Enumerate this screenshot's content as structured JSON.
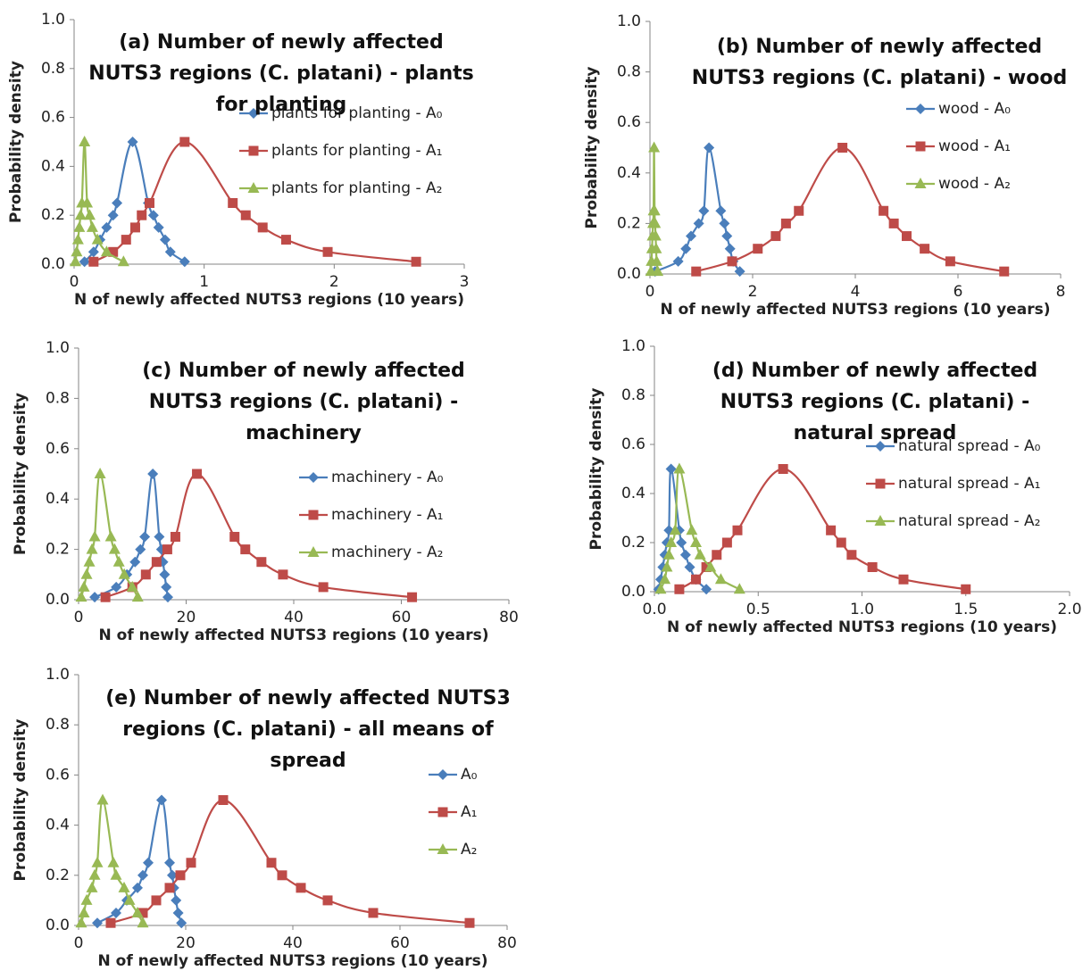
{
  "chart_data": [
    {
      "type": "line",
      "title": "(a) Number of newly affected NUTS3 regions (C. platani) - plants for planting",
      "x_label": "N of newly affected NUTS3 regions (10 years)",
      "y_label": "Probability density",
      "xlim": [
        0,
        3
      ],
      "xticks": [
        0,
        1,
        2,
        3
      ],
      "ylim": [
        0,
        1
      ],
      "yticks": [
        {
          "value": 0,
          "label": "0.0"
        },
        {
          "value": 0.2,
          "label": "0.2"
        },
        {
          "value": 0.4,
          "label": "0.4"
        },
        {
          "value": 0.6,
          "label": "0.6"
        },
        {
          "value": 0.8,
          "label": "0.8"
        },
        {
          "value": 1,
          "label": "1.0"
        }
      ],
      "legend": "right",
      "series": [
        {
          "name": "plants for planting - A₀",
          "color": "#4a7ebb",
          "marker": "diamond",
          "x": [
            0.08,
            0.15,
            0.2,
            0.25,
            0.3,
            0.33,
            0.45,
            0.57,
            0.61,
            0.65,
            0.7,
            0.74,
            0.85
          ],
          "values": [
            0.01,
            0.05,
            0.1,
            0.15,
            0.2,
            0.25,
            0.5,
            0.25,
            0.2,
            0.15,
            0.1,
            0.05,
            0.01
          ]
        },
        {
          "name": "plants for planting - A₁",
          "color": "#be4b48",
          "marker": "square",
          "x": [
            0.15,
            0.3,
            0.4,
            0.47,
            0.52,
            0.58,
            0.85,
            1.22,
            1.32,
            1.45,
            1.63,
            1.95,
            2.63
          ],
          "values": [
            0.01,
            0.05,
            0.1,
            0.15,
            0.2,
            0.25,
            0.5,
            0.25,
            0.2,
            0.15,
            0.1,
            0.05,
            0.01
          ]
        },
        {
          "name": "plants for planting - A₂",
          "color": "#98b954",
          "marker": "triangle",
          "x": [
            0.01,
            0.02,
            0.03,
            0.04,
            0.05,
            0.06,
            0.08,
            0.1,
            0.12,
            0.14,
            0.18,
            0.25,
            0.38
          ],
          "values": [
            0.01,
            0.05,
            0.1,
            0.15,
            0.2,
            0.25,
            0.5,
            0.25,
            0.2,
            0.15,
            0.1,
            0.05,
            0.01
          ]
        }
      ]
    },
    {
      "type": "line",
      "title": "(b) Number of newly affected NUTS3 regions (C. platani) - wood",
      "x_label": "N of newly affected NUTS3 regions (10 years)",
      "y_label": "Probability density",
      "xlim": [
        0,
        8
      ],
      "xticks": [
        0,
        2,
        4,
        6,
        8
      ],
      "ylim": [
        0,
        1
      ],
      "yticks": [
        {
          "value": 0,
          "label": "0.0"
        },
        {
          "value": 0.2,
          "label": "0.2"
        },
        {
          "value": 0.4,
          "label": "0.4"
        },
        {
          "value": 0.6,
          "label": "0.6"
        },
        {
          "value": 0.8,
          "label": "0.8"
        },
        {
          "value": 1,
          "label": "1.0"
        }
      ],
      "legend": "right",
      "series": [
        {
          "name": "wood - A₀",
          "color": "#4a7ebb",
          "marker": "diamond",
          "x": [
            0.1,
            0.55,
            0.7,
            0.8,
            0.95,
            1.05,
            1.15,
            1.38,
            1.45,
            1.5,
            1.56,
            1.62,
            1.75
          ],
          "values": [
            0.01,
            0.05,
            0.1,
            0.15,
            0.2,
            0.25,
            0.5,
            0.25,
            0.2,
            0.15,
            0.1,
            0.05,
            0.01
          ]
        },
        {
          "name": "wood - A₁",
          "color": "#be4b48",
          "marker": "square",
          "x": [
            0.9,
            1.6,
            2.1,
            2.45,
            2.65,
            2.9,
            3.75,
            4.55,
            4.75,
            5.0,
            5.35,
            5.85,
            6.9
          ],
          "values": [
            0.01,
            0.05,
            0.1,
            0.15,
            0.2,
            0.25,
            0.5,
            0.25,
            0.2,
            0.15,
            0.1,
            0.05,
            0.01
          ]
        },
        {
          "name": "wood - A₂",
          "color": "#98b954",
          "marker": "triangle",
          "x": [
            0.02,
            0.03,
            0.04,
            0.05,
            0.06,
            0.07,
            0.08,
            0.09,
            0.1,
            0.11,
            0.12,
            0.13,
            0.15
          ],
          "values": [
            0.01,
            0.05,
            0.1,
            0.15,
            0.2,
            0.25,
            0.5,
            0.25,
            0.2,
            0.15,
            0.1,
            0.05,
            0.01
          ]
        }
      ]
    },
    {
      "type": "line",
      "title": "(c) Number of newly affected NUTS3 regions (C. platani) - machinery",
      "x_label": "N of newly affected NUTS3 regions (10 years)",
      "y_label": "Probability density",
      "xlim": [
        0,
        80
      ],
      "xticks": [
        0,
        20,
        40,
        60,
        80
      ],
      "ylim": [
        0,
        1
      ],
      "yticks": [
        {
          "value": 0,
          "label": "0.0"
        },
        {
          "value": 0.2,
          "label": "0.2"
        },
        {
          "value": 0.4,
          "label": "0.4"
        },
        {
          "value": 0.6,
          "label": "0.6"
        },
        {
          "value": 0.8,
          "label": "0.8"
        },
        {
          "value": 1,
          "label": "1.0"
        }
      ],
      "legend": "right",
      "series": [
        {
          "name": "machinery - A₀",
          "color": "#4a7ebb",
          "marker": "diamond",
          "x": [
            3,
            7,
            9,
            10.5,
            11.5,
            12.3,
            13.8,
            15,
            15.4,
            15.7,
            16,
            16.3,
            16.6
          ],
          "values": [
            0.01,
            0.05,
            0.1,
            0.15,
            0.2,
            0.25,
            0.5,
            0.25,
            0.2,
            0.15,
            0.1,
            0.05,
            0.01
          ]
        },
        {
          "name": "machinery - A₁",
          "color": "#be4b48",
          "marker": "square",
          "x": [
            5,
            10,
            12.5,
            14.5,
            16.5,
            18,
            22,
            29,
            31,
            34,
            38,
            45.5,
            62
          ],
          "values": [
            0.01,
            0.05,
            0.1,
            0.15,
            0.2,
            0.25,
            0.5,
            0.25,
            0.2,
            0.15,
            0.1,
            0.05,
            0.01
          ]
        },
        {
          "name": "machinery - A₂",
          "color": "#98b954",
          "marker": "triangle",
          "x": [
            0.5,
            1,
            1.5,
            2,
            2.5,
            3,
            4,
            6,
            6.7,
            7.5,
            8.5,
            10,
            11
          ],
          "values": [
            0.01,
            0.05,
            0.1,
            0.15,
            0.2,
            0.25,
            0.5,
            0.25,
            0.2,
            0.15,
            0.1,
            0.05,
            0.01
          ]
        }
      ]
    },
    {
      "type": "line",
      "title": "(d) Number of newly affected NUTS3 regions (C. platani) - natural spread",
      "x_label": "N of newly affected NUTS3 regions (10 years)",
      "y_label": "Probability density",
      "xlim": [
        0,
        2
      ],
      "xticks": [
        {
          "value": 0,
          "label": "0.0"
        },
        {
          "value": 0.5,
          "label": "0.5"
        },
        {
          "value": 1,
          "label": "1.0"
        },
        {
          "value": 1.5,
          "label": "1.5"
        },
        {
          "value": 2,
          "label": "2.0"
        }
      ],
      "ylim": [
        0,
        1
      ],
      "yticks": [
        {
          "value": 0,
          "label": "0.0"
        },
        {
          "value": 0.2,
          "label": "0.2"
        },
        {
          "value": 0.4,
          "label": "0.4"
        },
        {
          "value": 0.6,
          "label": "0.6"
        },
        {
          "value": 0.8,
          "label": "0.8"
        },
        {
          "value": 1,
          "label": "1.0"
        }
      ],
      "legend": "right",
      "series": [
        {
          "name": "natural spread - A₀",
          "color": "#4a7ebb",
          "marker": "diamond",
          "x": [
            0.02,
            0.03,
            0.04,
            0.05,
            0.06,
            0.07,
            0.08,
            0.12,
            0.13,
            0.15,
            0.17,
            0.2,
            0.25
          ],
          "values": [
            0.01,
            0.05,
            0.1,
            0.15,
            0.2,
            0.25,
            0.5,
            0.25,
            0.2,
            0.15,
            0.1,
            0.05,
            0.01
          ]
        },
        {
          "name": "natural spread - A₁",
          "color": "#be4b48",
          "marker": "square",
          "x": [
            0.12,
            0.2,
            0.25,
            0.3,
            0.35,
            0.4,
            0.62,
            0.85,
            0.9,
            0.95,
            1.05,
            1.2,
            1.5
          ],
          "values": [
            0.01,
            0.05,
            0.1,
            0.15,
            0.2,
            0.25,
            0.5,
            0.25,
            0.2,
            0.15,
            0.1,
            0.05,
            0.01
          ]
        },
        {
          "name": "natural spread - A₂",
          "color": "#98b954",
          "marker": "triangle",
          "x": [
            0.03,
            0.05,
            0.06,
            0.07,
            0.08,
            0.1,
            0.12,
            0.18,
            0.2,
            0.22,
            0.27,
            0.32,
            0.41
          ],
          "values": [
            0.01,
            0.05,
            0.1,
            0.15,
            0.2,
            0.25,
            0.5,
            0.25,
            0.2,
            0.15,
            0.1,
            0.05,
            0.01
          ]
        }
      ]
    },
    {
      "type": "line",
      "title": "(e) Number of newly affected NUTS3 regions (C. platani) - all means of spread",
      "x_label": "N of newly affected NUTS3 regions (10 years)",
      "y_label": "Probability density",
      "xlim": [
        0,
        80
      ],
      "xticks": [
        0,
        20,
        40,
        60,
        80
      ],
      "ylim": [
        0,
        1
      ],
      "yticks": [
        {
          "value": 0,
          "label": "0.0"
        },
        {
          "value": 0.2,
          "label": "0.2"
        },
        {
          "value": 0.4,
          "label": "0.4"
        },
        {
          "value": 0.6,
          "label": "0.6"
        },
        {
          "value": 0.8,
          "label": "0.8"
        },
        {
          "value": 1,
          "label": "1.0"
        }
      ],
      "legend": "right",
      "series": [
        {
          "name": "A₀",
          "color": "#4a7ebb",
          "marker": "diamond",
          "x": [
            3.5,
            7,
            9,
            11,
            12,
            13,
            15.5,
            17,
            17.5,
            17.8,
            18.2,
            18.6,
            19.2
          ],
          "values": [
            0.01,
            0.05,
            0.1,
            0.15,
            0.2,
            0.25,
            0.5,
            0.25,
            0.2,
            0.15,
            0.1,
            0.05,
            0.01
          ]
        },
        {
          "name": "A₁",
          "color": "#be4b48",
          "marker": "square",
          "x": [
            6,
            12,
            14.5,
            17,
            19,
            21,
            27,
            36,
            38,
            41.5,
            46.5,
            55,
            73
          ],
          "values": [
            0.01,
            0.05,
            0.1,
            0.15,
            0.2,
            0.25,
            0.5,
            0.25,
            0.2,
            0.15,
            0.1,
            0.05,
            0.01
          ]
        },
        {
          "name": "A₂",
          "color": "#98b954",
          "marker": "triangle",
          "x": [
            0.5,
            1,
            1.5,
            2.5,
            3,
            3.5,
            4.5,
            6.5,
            7,
            8.5,
            9.5,
            11,
            12
          ],
          "values": [
            0.01,
            0.05,
            0.1,
            0.15,
            0.2,
            0.25,
            0.5,
            0.25,
            0.2,
            0.15,
            0.1,
            0.05,
            0.01
          ]
        }
      ]
    }
  ]
}
